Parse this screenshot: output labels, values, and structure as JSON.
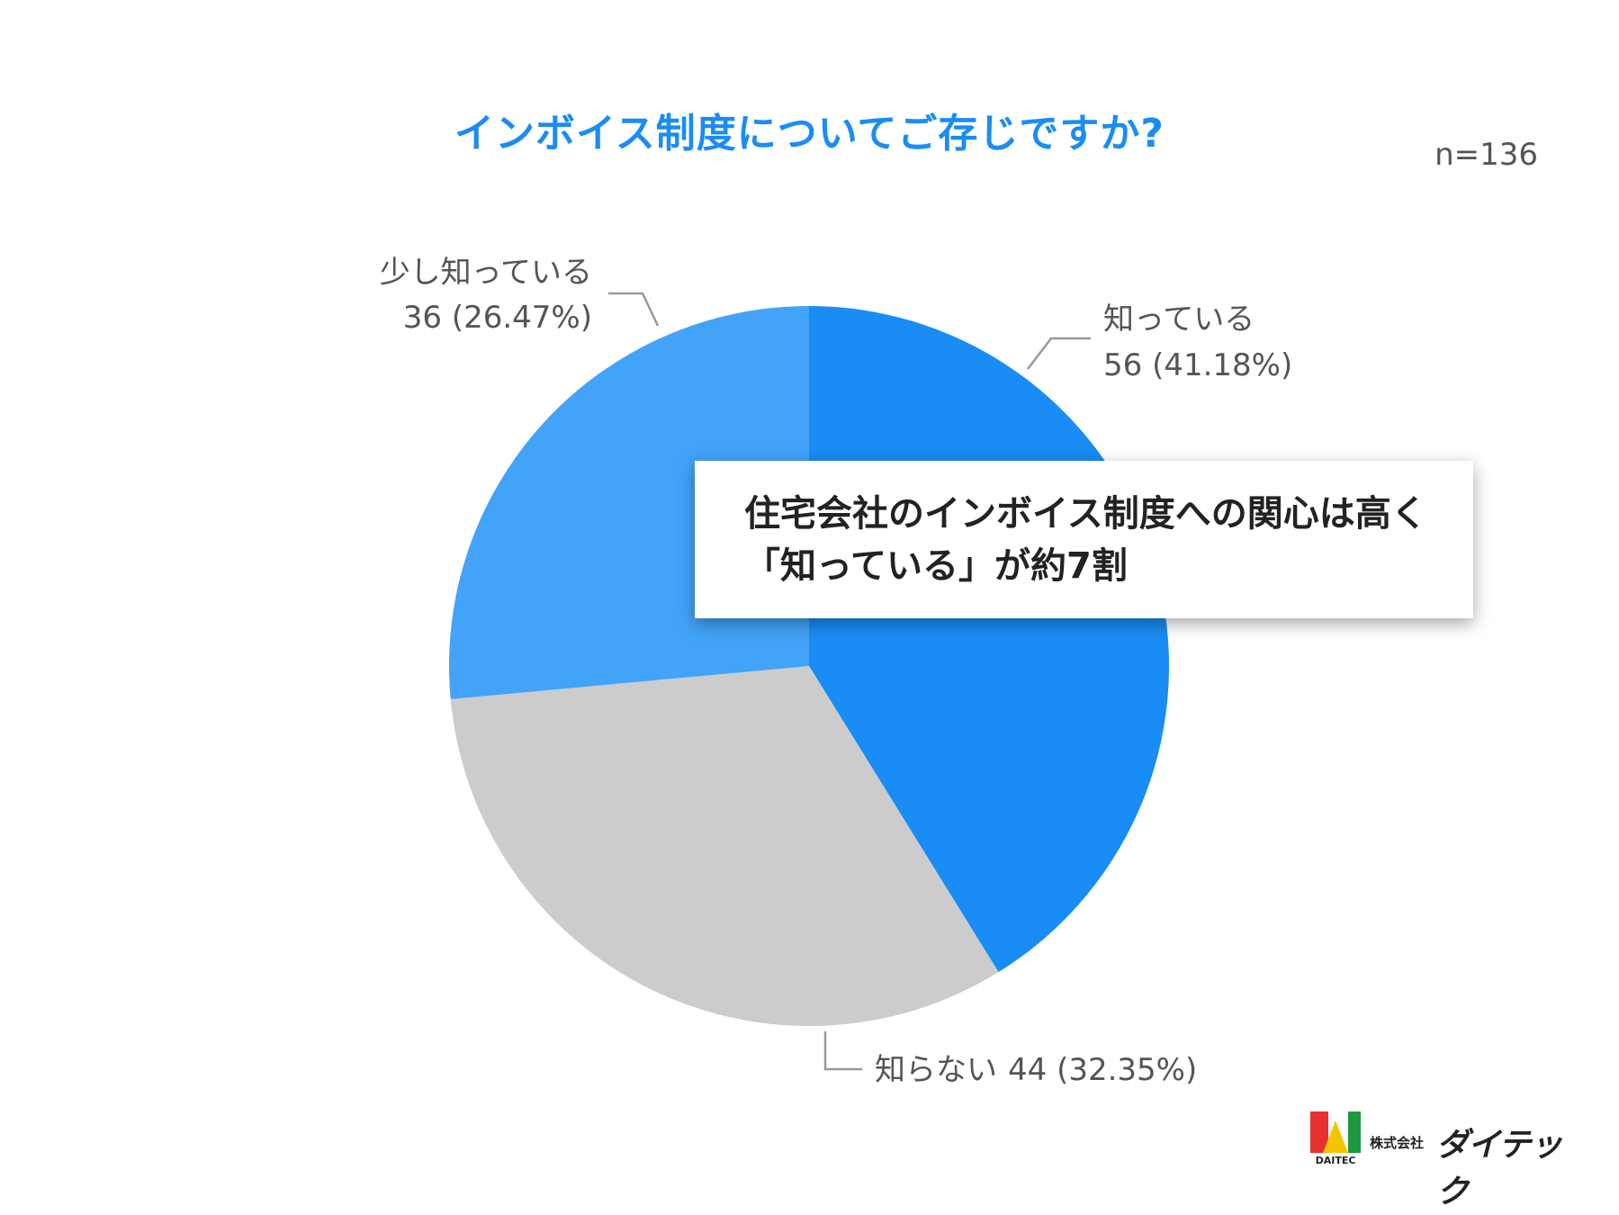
{
  "title": "インボイス制度についてご存じですか?",
  "sample_size": "n=136",
  "chart_data": {
    "type": "pie",
    "title": "インボイス制度についてご存じですか?",
    "total": 136,
    "slices": [
      {
        "label": "知っている",
        "value": 56,
        "percent": 41.18,
        "value_text": "56 (41.18%)",
        "color": "#1a8cf5"
      },
      {
        "label": "知らない",
        "value": 44,
        "percent": 32.35,
        "value_text": "44 (32.35%)",
        "color": "#cccccc"
      },
      {
        "label": "少し知っている",
        "value": 36,
        "percent": 26.47,
        "value_text": "36 (26.47%)",
        "color": "#42a3f8"
      }
    ]
  },
  "callout": {
    "line1": "住宅会社のインボイス制度への関心は高く",
    "line2": "「知っている」が約7割"
  },
  "logo": {
    "mark_text": "DAITEC",
    "company_prefix": "株式会社",
    "company_name": "ダイテック",
    "colors": [
      "#e8312f",
      "#f5c400",
      "#1c9a3d"
    ]
  }
}
